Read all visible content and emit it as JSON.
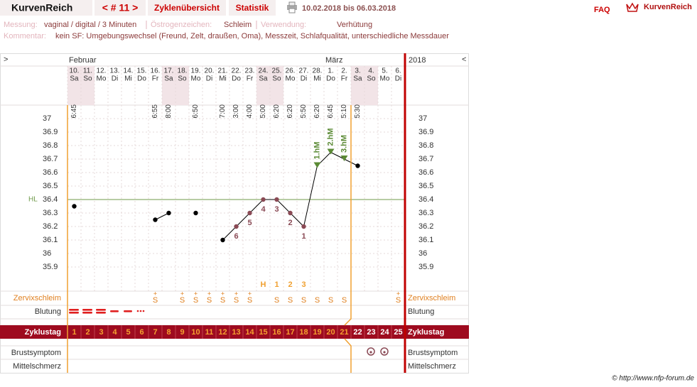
{
  "header": {
    "brand": "KurvenReich",
    "cycle_nav": "< # 11 >",
    "tabs": [
      "Zyklenübersicht",
      "Statistik"
    ],
    "date_range": "10.02.2018 bis 06.03.2018",
    "faq": "FAQ",
    "logo": "KurvenReich"
  },
  "info": {
    "measurement_label": "Messung:",
    "measurement": "vaginal / digital / 3 Minuten",
    "estrogen_label": "Östrogenzeichen:",
    "estrogen": "Schleim",
    "usage_label": "Verwendung:",
    "usage": "Verhütung",
    "comment_label": "Kommentar:",
    "comment": "kein SF: Umgebungswechsel (Freund, Zelt, draußen, Oma), Messzeit, Schlafqualität, unterschiedliche Messdauer"
  },
  "chart_data": {
    "type": "line",
    "nav_prev": ">",
    "nav_next": "<",
    "year": "2018",
    "months": [
      {
        "label": "Februar",
        "index": 0
      },
      {
        "label": "März",
        "index": 19
      }
    ],
    "categories": [
      "10.",
      "11.",
      "12.",
      "13.",
      "14.",
      "15.",
      "16.",
      "17.",
      "18.",
      "19.",
      "20.",
      "21.",
      "22.",
      "23.",
      "24.",
      "25.",
      "26.",
      "27.",
      "28.",
      "1.",
      "2.",
      "3.",
      "4.",
      "5.",
      "6."
    ],
    "weekdays": [
      "Sa",
      "So",
      "Mo",
      "Di",
      "Mi",
      "Do",
      "Fr",
      "Sa",
      "So",
      "Mo",
      "Di",
      "Mi",
      "Do",
      "Fr",
      "Sa",
      "So",
      "Mo",
      "Di",
      "Mi",
      "Do",
      "Fr",
      "Sa",
      "So",
      "Mo",
      "Di"
    ],
    "times": [
      "6:45",
      null,
      null,
      null,
      null,
      null,
      "6:55",
      "8:00",
      null,
      "6:50",
      null,
      "7:00",
      "3:00",
      "4:00",
      "5:00",
      "6:20",
      "6:20",
      "5:50",
      "6:20",
      "6:45",
      "5:10",
      "5:30",
      null,
      null,
      null
    ],
    "values": [
      36.35,
      null,
      null,
      null,
      null,
      null,
      36.25,
      36.3,
      null,
      36.3,
      null,
      36.1,
      36.2,
      36.3,
      36.4,
      36.4,
      36.3,
      36.2,
      36.65,
      36.75,
      36.7,
      36.65,
      null,
      null,
      null
    ],
    "color": "#000000",
    "low_color": "#8a4a55",
    "high_color": "#5b8a35",
    "hl_color": "#6f9a4a",
    "low_labels": [
      null,
      null,
      null,
      null,
      null,
      null,
      null,
      null,
      null,
      null,
      null,
      null,
      6,
      5,
      4,
      3,
      2,
      1,
      null,
      null,
      null,
      null,
      null,
      null,
      null
    ],
    "high_labels": [
      null,
      null,
      null,
      null,
      null,
      null,
      null,
      null,
      null,
      null,
      null,
      null,
      null,
      null,
      null,
      null,
      null,
      null,
      "1.hM",
      "2.hM",
      "3.hM",
      null,
      null,
      null,
      null
    ],
    "phase_labels": [
      null,
      null,
      null,
      null,
      null,
      null,
      null,
      null,
      null,
      null,
      null,
      null,
      null,
      null,
      "H",
      "1",
      "2",
      "3",
      null,
      null,
      null,
      null,
      null,
      null,
      null
    ],
    "hl": {
      "label": "HL",
      "value": 36.4
    },
    "ylim": [
      35.8,
      37.1
    ],
    "yticks": [
      37,
      36.9,
      36.8,
      36.7,
      36.6,
      36.5,
      36.4,
      36.3,
      36.2,
      36.1,
      36,
      35.9
    ],
    "grid": true,
    "row_labels": {
      "cervix": "Zervixschleim",
      "bleeding": "Blutung",
      "cycle_day": "Zyklustag",
      "breast": "Brustsymptom",
      "pain": "Mittelschmerz"
    },
    "cervix": [
      null,
      null,
      null,
      null,
      null,
      null,
      {
        "sup": "+",
        "base": "S"
      },
      null,
      {
        "sup": "+",
        "base": "S"
      },
      {
        "sup": "+",
        "base": "S"
      },
      {
        "sup": "+",
        "base": "S"
      },
      {
        "sup": "+",
        "base": "S"
      },
      {
        "sup": "+",
        "base": "S"
      },
      {
        "sup": "+",
        "base": "S"
      },
      null,
      {
        "base": "S"
      },
      {
        "base": "S"
      },
      {
        "base": "S"
      },
      {
        "base": "S"
      },
      {
        "base": "S"
      },
      {
        "base": "S"
      },
      null,
      null,
      null,
      {
        "sup": "+",
        "base": "S"
      }
    ],
    "cycle_days": [
      1,
      2,
      3,
      4,
      5,
      6,
      7,
      8,
      9,
      10,
      11,
      12,
      13,
      14,
      15,
      16,
      17,
      18,
      19,
      20,
      21,
      22,
      23,
      24,
      25
    ]
  },
  "footer": "© http://www.nfp-forum.de"
}
